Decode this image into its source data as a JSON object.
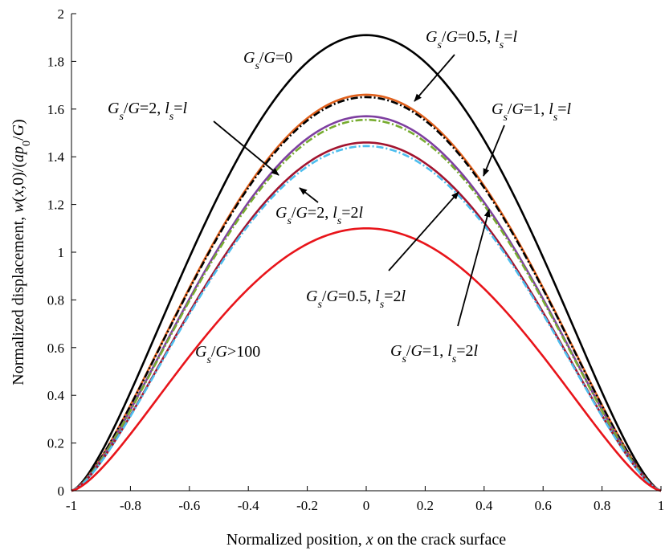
{
  "chart_data": {
    "type": "line",
    "title": "",
    "xlabel": "Normalized position, x on the crack surface",
    "ylabel": "Normalized displacement, w(x,0)/(ap0/G)",
    "xlim": [
      -1,
      1
    ],
    "ylim": [
      0,
      2
    ],
    "xticks": [
      "-1",
      "-0.8",
      "-0.6",
      "-0.4",
      "-0.2",
      "0",
      "0.2",
      "0.4",
      "0.6",
      "0.8",
      "1"
    ],
    "yticks": [
      "0",
      "0.2",
      "0.4",
      "0.6",
      "0.8",
      "1",
      "1.2",
      "1.4",
      "1.6",
      "1.8",
      "2"
    ],
    "grid": false,
    "legend": "none (curves labeled by annotations with arrows)",
    "series": [
      {
        "name": "Gs/G=0",
        "peak": 1.91,
        "color": "#000000",
        "style": "solid"
      },
      {
        "name": "Gs/G=0.5, ls=l",
        "peak": 1.66,
        "color": "#e0601c",
        "style": "solid"
      },
      {
        "name": "Gs/G=1, ls=l",
        "peak": 1.65,
        "color": "#000000",
        "style": "dash-dot"
      },
      {
        "name": "Gs/G=2, ls=l",
        "peak": 1.57,
        "color": "#7e3fa0",
        "style": "solid"
      },
      {
        "name": "Gs/G=0.5, ls=2l",
        "peak": 1.555,
        "color": "#77ac30",
        "style": "dash-dot"
      },
      {
        "name": "Gs/G=1, ls=2l",
        "peak": 1.46,
        "color": "#a2142f",
        "style": "solid"
      },
      {
        "name": "Gs/G=2, ls=2l",
        "peak": 1.445,
        "color": "#4dbeee",
        "style": "dash-dot"
      },
      {
        "name": "Gs/G>100",
        "peak": 1.1,
        "color": "#e8141a",
        "style": "solid"
      }
    ],
    "curve_shape": "w(x) = peak * (1 - x^2)^1.5, x from -1 to 1",
    "annotations": [
      {
        "text": [
          "G",
          "s",
          "/G=0"
        ]
      },
      {
        "text": [
          "G",
          "s",
          "/G=0.5, ",
          "l",
          "s",
          "=l"
        ]
      },
      {
        "text": [
          "G",
          "s",
          "/G=1, ",
          "l",
          "s",
          "=l"
        ]
      },
      {
        "text": [
          "G",
          "s",
          "/G=2, ",
          "l",
          "s",
          "=l"
        ]
      },
      {
        "text": [
          "G",
          "s",
          "/G=2, ",
          "l",
          "s",
          "=2l"
        ]
      },
      {
        "text": [
          "G",
          "s",
          "/G=0.5, ",
          "l",
          "s",
          "=2l"
        ]
      },
      {
        "text": [
          "G",
          "s",
          "/G=1, ",
          "l",
          "s",
          "=2l"
        ]
      },
      {
        "text": [
          "G",
          "s",
          "/G>100"
        ]
      }
    ]
  }
}
